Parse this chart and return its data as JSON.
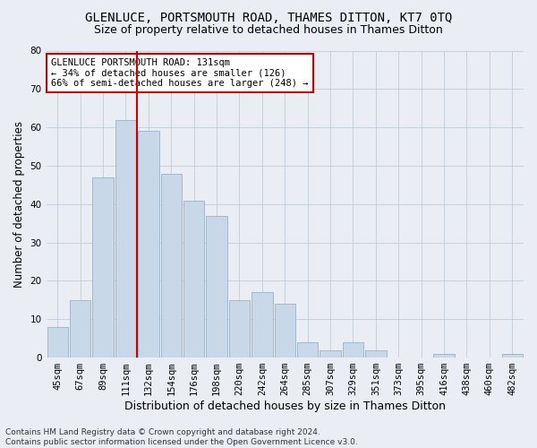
{
  "title": "GLENLUCE, PORTSMOUTH ROAD, THAMES DITTON, KT7 0TQ",
  "subtitle": "Size of property relative to detached houses in Thames Ditton",
  "xlabel": "Distribution of detached houses by size in Thames Ditton",
  "ylabel": "Number of detached properties",
  "categories": [
    "45sqm",
    "67sqm",
    "89sqm",
    "111sqm",
    "132sqm",
    "154sqm",
    "176sqm",
    "198sqm",
    "220sqm",
    "242sqm",
    "264sqm",
    "285sqm",
    "307sqm",
    "329sqm",
    "351sqm",
    "373sqm",
    "395sqm",
    "416sqm",
    "438sqm",
    "460sqm",
    "482sqm"
  ],
  "values": [
    8,
    15,
    47,
    62,
    59,
    48,
    41,
    37,
    15,
    17,
    14,
    4,
    2,
    4,
    2,
    0,
    0,
    1,
    0,
    0,
    1
  ],
  "bar_color": "#c8d8e8",
  "bar_edge_color": "#9ab0c8",
  "grid_color": "#c0ccd8",
  "background_color": "#eaeef4",
  "vline_color": "#cc0000",
  "vline_pos": 3.5,
  "annotation_text": "GLENLUCE PORTSMOUTH ROAD: 131sqm\n← 34% of detached houses are smaller (126)\n66% of semi-detached houses are larger (248) →",
  "annotation_box_color": "#ffffff",
  "annotation_box_edge": "#cc0000",
  "ylim": [
    0,
    80
  ],
  "yticks": [
    0,
    10,
    20,
    30,
    40,
    50,
    60,
    70,
    80
  ],
  "footer": "Contains HM Land Registry data © Crown copyright and database right 2024.\nContains public sector information licensed under the Open Government Licence v3.0.",
  "title_fontsize": 10,
  "subtitle_fontsize": 9,
  "xlabel_fontsize": 9,
  "ylabel_fontsize": 8.5,
  "tick_fontsize": 7.5,
  "annotation_fontsize": 7.5,
  "footer_fontsize": 6.5
}
